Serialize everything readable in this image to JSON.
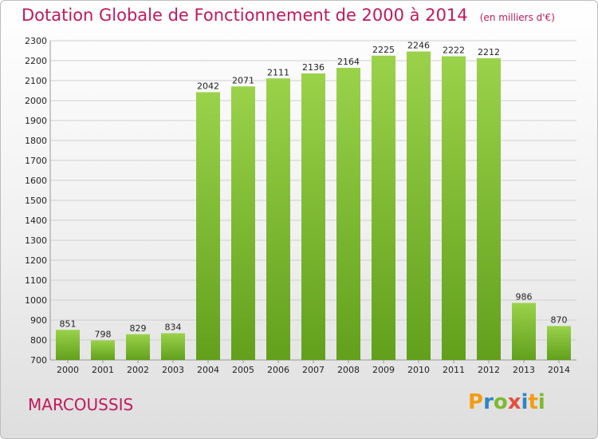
{
  "chart_data": {
    "type": "bar",
    "title": "Dotation Globale de Fonctionnement de 2000 à 2014",
    "subtitle": "(en milliers d'€)",
    "categories": [
      "2000",
      "2001",
      "2002",
      "2003",
      "2004",
      "2005",
      "2006",
      "2007",
      "2008",
      "2009",
      "2010",
      "2011",
      "2012",
      "2013",
      "2014"
    ],
    "values": [
      851,
      798,
      829,
      834,
      2042,
      2071,
      2111,
      2136,
      2164,
      2225,
      2246,
      2222,
      2212,
      986,
      870
    ],
    "ylim": [
      700,
      2300
    ],
    "yticks": [
      700,
      800,
      900,
      1000,
      1100,
      1200,
      1300,
      1400,
      1500,
      1600,
      1700,
      1800,
      1900,
      2000,
      2100,
      2200,
      2300
    ],
    "grid": true,
    "bar_color": "#7cba2e",
    "xlabel": "",
    "ylabel": ""
  },
  "commune": "MARCOUSSIS",
  "brand": {
    "letters": [
      "P",
      "r",
      "o",
      "x",
      "i",
      "t",
      "i"
    ],
    "colors": [
      "#f39c12",
      "#2e86c1",
      "#7cba2e",
      "#e74c3c",
      "#2e86c1",
      "#f39c12",
      "#7cba2e"
    ]
  }
}
